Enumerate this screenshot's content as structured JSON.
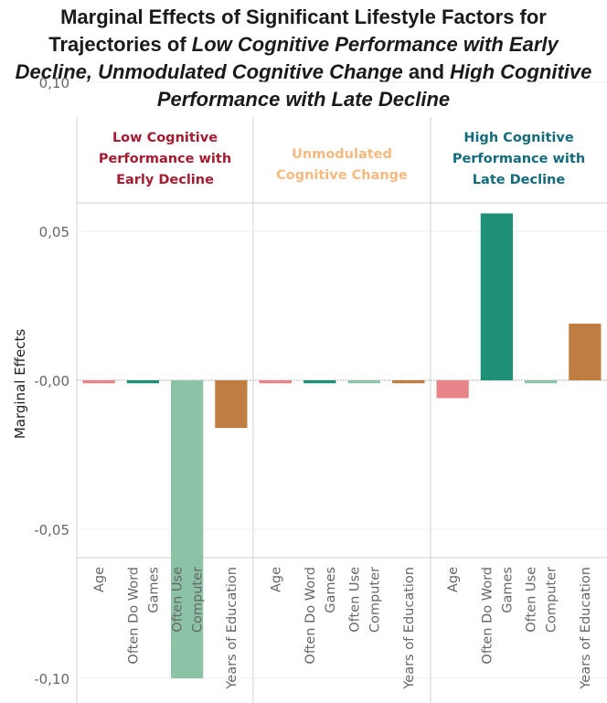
{
  "title": {
    "line1": "Marginal Effects of Significant Lifestyle Factors for",
    "line2_plain": "Trajectories of ",
    "line2_italic": "Low Cognitive Performance with Early",
    "line3_italic1": "Decline, Unmodulated Cognitive Change",
    "line3_plain": " and ",
    "line3_italic2": "High Cognitive",
    "line4_italic": "Performance with Late Decline"
  },
  "chart_data": {
    "type": "bar",
    "ylabel": "Marginal Effects",
    "ylim": [
      -0.12,
      0.12
    ],
    "yticks": [
      {
        "value": 0.1,
        "label": "0,10"
      },
      {
        "value": 0.05,
        "label": "0,05"
      },
      {
        "value": 0.0,
        "label": "-0,00"
      },
      {
        "value": -0.05,
        "label": "-0,05"
      },
      {
        "value": -0.1,
        "label": "-0,10"
      }
    ],
    "categories": [
      {
        "lines": [
          "Age"
        ],
        "color": "#e9858a"
      },
      {
        "lines": [
          "Often Do Word",
          "Games"
        ],
        "color": "#1f8f78"
      },
      {
        "lines": [
          "Often Use",
          "Computer"
        ],
        "color": "#8cc2a6"
      },
      {
        "lines": [
          "Years of Education"
        ],
        "color": "#bf7d41"
      }
    ],
    "panels": [
      {
        "title_lines": [
          "Low Cognitive",
          "Performance with",
          "Early Decline"
        ],
        "title_color": "#a51c30",
        "values": [
          -0.001,
          -0.001,
          -0.1,
          -0.016
        ]
      },
      {
        "title_lines": [
          "Unmodulated",
          "Cognitive Change"
        ],
        "title_color": "#f6b97f",
        "values": [
          -0.001,
          -0.001,
          -0.001,
          -0.001
        ]
      },
      {
        "title_lines": [
          "High Cognitive",
          "Performance with",
          "Late Decline"
        ],
        "title_color": "#136b7b",
        "values": [
          -0.006,
          0.056,
          -0.001,
          0.019
        ]
      }
    ]
  }
}
